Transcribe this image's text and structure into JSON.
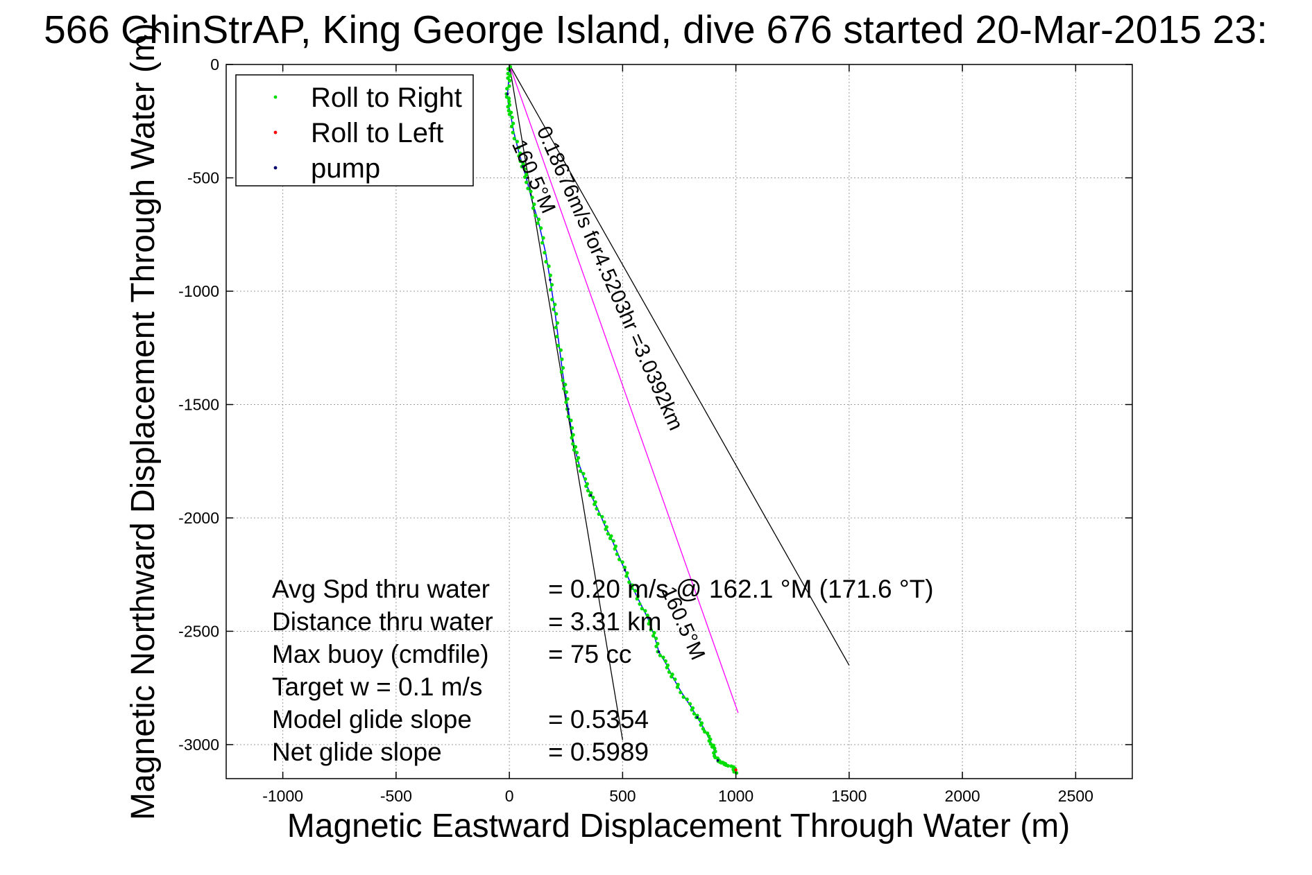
{
  "chart_data": {
    "type": "line",
    "title": "566 ChinStrAP, King George Island, dive 676 started 20-Mar-2015 23:",
    "xlabel": "Magnetic Eastward Displacement Through Water (m)",
    "ylabel": "Magnetic Northward Displacement Through Water (m)",
    "xlim": [
      -1250,
      2750
    ],
    "ylim": [
      -3150,
      0
    ],
    "xticks": [
      -1000,
      -500,
      0,
      500,
      1000,
      1500,
      2000,
      2500
    ],
    "yticks": [
      0,
      -500,
      -1000,
      -1500,
      -2000,
      -2500,
      -3000
    ],
    "xtick_labels": [
      "-1000",
      "-500",
      "0",
      "500",
      "1000",
      "1500",
      "2000",
      "2500"
    ],
    "ytick_labels": [
      "0",
      "-500",
      "-1000",
      "-1500",
      "-2000",
      "-2500",
      "-3000"
    ],
    "grid": true,
    "legend_position": "top-left",
    "legend": [
      {
        "label": "Roll to Right",
        "color": "#00dd00"
      },
      {
        "label": "Roll to Left",
        "color": "#ff0000"
      },
      {
        "label": "pump",
        "color": "#00006e"
      }
    ],
    "track": {
      "color": "#0000ff",
      "x": [
        0,
        -2,
        -8,
        -5,
        5,
        20,
        40,
        60,
        80,
        100,
        130,
        160,
        180,
        200,
        215,
        230,
        245,
        260,
        275,
        290,
        310,
        335,
        360,
        390,
        420,
        450,
        480,
        510,
        545,
        580,
        610,
        640,
        660,
        690,
        720,
        760,
        800,
        830,
        860,
        880,
        900,
        910,
        920,
        940,
        960,
        990,
        1000
      ],
      "y": [
        0,
        -60,
        -130,
        -170,
        -220,
        -300,
        -380,
        -450,
        -520,
        -600,
        -700,
        -830,
        -950,
        -1080,
        -1200,
        -1320,
        -1430,
        -1520,
        -1620,
        -1700,
        -1770,
        -1840,
        -1900,
        -1960,
        -2030,
        -2090,
        -2160,
        -2230,
        -2310,
        -2380,
        -2440,
        -2520,
        -2590,
        -2640,
        -2700,
        -2770,
        -2830,
        -2880,
        -2930,
        -2970,
        -3010,
        -3050,
        -3070,
        -3080,
        -3090,
        -3100,
        -3130
      ]
    },
    "reference_lines": [
      {
        "name": "current",
        "color": "#000000",
        "x": [
          0,
          1500
        ],
        "y": [
          0,
          -2650
        ]
      },
      {
        "name": "heading",
        "color": "#000000",
        "x": [
          0,
          500
        ],
        "y": [
          0,
          -2980
        ]
      },
      {
        "name": "avg",
        "color": "#ff00ff",
        "x": [
          0,
          1010
        ],
        "y": [
          0,
          -2860
        ]
      }
    ],
    "line_labels": [
      {
        "text": "0.18676m/s for4.5203hr =3.0392km",
        "x": 120,
        "y": -290,
        "rotation": 66
      },
      {
        "text": "160.5°M",
        "x": 10,
        "y": -350,
        "rotation": 66
      },
      {
        "text": "160.5°M",
        "x": 670,
        "y": -2320,
        "rotation": 66
      }
    ],
    "annotations": [
      {
        "label": "Avg Spd thru water",
        "value": "=  0.20 m/s @  162.1 °M (171.6 °T)"
      },
      {
        "label": "Distance thru water",
        "value": "=  3.31 km"
      },
      {
        "label": "Max buoy (cmdfile)",
        "value": "= 75 cc"
      },
      {
        "label": "Target w    = 0.1 m/s",
        "value": ""
      },
      {
        "label": "Model glide slope",
        "value": "= 0.5354"
      },
      {
        "label": "Net glide slope",
        "value": "= 0.5989"
      }
    ]
  }
}
